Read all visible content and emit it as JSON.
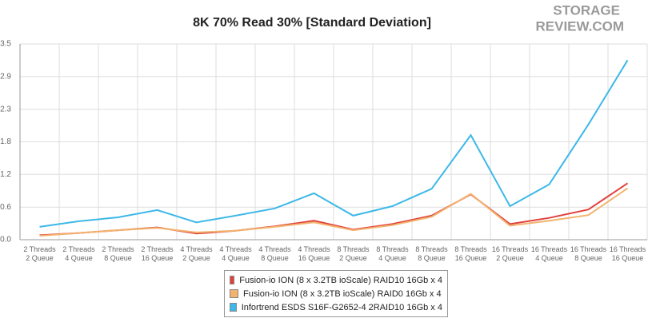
{
  "logo": [
    "STORAGE",
    "REVIEW.COM"
  ],
  "chart_data": {
    "type": "line",
    "title": "8K 70% Read 30% [Standard Deviation]",
    "categories": [
      "2 Threads\n2 Queue",
      "2 Threads\n4 Queue",
      "2 Threads\n8 Queue",
      "2 Threads\n16 Queue",
      "4 Threads\n2 Queue",
      "4 Threads\n4 Queue",
      "4 Threads\n8 Queue",
      "4 Threads\n16 Queue",
      "8 Threads\n2 Queue",
      "8 Threads\n4 Queue",
      "8 Threads\n8 Queue",
      "8 Threads\n16 Queue",
      "16 Threads\n2 Queue",
      "16 Threads\n4 Queue",
      "16 Threads\n8 Queue",
      "16 Threads\n16 Queue"
    ],
    "series": [
      {
        "name": "Fusion-io ION (8 x 3.2TB ioScale) RAID10 16Gb x 4",
        "color": "#e0413c",
        "values": [
          0.08,
          0.12,
          0.17,
          0.22,
          0.11,
          0.16,
          0.24,
          0.34,
          0.18,
          0.28,
          0.43,
          0.81,
          0.28,
          0.39,
          0.54,
          1.01
        ]
      },
      {
        "name": "Fusion-io ION (8 x 3.2TB ioScale) RAID0 16Gb x 4",
        "color": "#f2b36e",
        "values": [
          0.07,
          0.12,
          0.17,
          0.21,
          0.13,
          0.16,
          0.23,
          0.31,
          0.17,
          0.26,
          0.41,
          0.82,
          0.25,
          0.34,
          0.44,
          0.92
        ]
      },
      {
        "name": "Infortrend ESDS S16F-G2652-4 2RAID10 16Gb x 4",
        "color": "#3db8e8",
        "values": [
          0.23,
          0.33,
          0.4,
          0.53,
          0.31,
          0.43,
          0.56,
          0.83,
          0.43,
          0.6,
          0.91,
          1.87,
          0.6,
          0.99,
          2.06,
          3.21
        ]
      }
    ],
    "ylim": [
      0,
      3.5
    ],
    "yticks": [
      {
        "value": 0,
        "label": "0.0"
      },
      {
        "value": 0.583,
        "label": "0.6"
      },
      {
        "value": 1.167,
        "label": "1.2"
      },
      {
        "value": 1.75,
        "label": "1.8"
      },
      {
        "value": 2.333,
        "label": "2.3"
      },
      {
        "value": 2.917,
        "label": "2.9"
      },
      {
        "value": 3.5,
        "label": "3.5"
      }
    ],
    "grid": true,
    "legend": "bottom"
  }
}
